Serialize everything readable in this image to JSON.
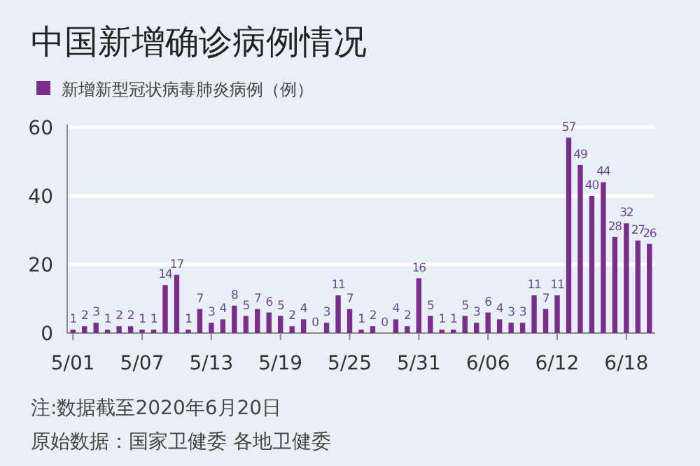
{
  "chart_data": {
    "type": "bar",
    "title": "中国新增确诊病例情况",
    "categories": [
      "5/01",
      null,
      null,
      null,
      null,
      null,
      "5/07",
      null,
      null,
      null,
      null,
      null,
      "5/13",
      null,
      null,
      null,
      null,
      null,
      "5/19",
      null,
      null,
      null,
      null,
      null,
      "5/25",
      null,
      null,
      null,
      null,
      null,
      "5/31",
      null,
      null,
      null,
      null,
      null,
      "6/06",
      null,
      null,
      null,
      null,
      null,
      "6/12",
      null,
      null,
      null,
      null,
      null,
      "6/18",
      null,
      null
    ],
    "series": [
      {
        "name": "新增新型冠状病毒肺炎病例（例）",
        "color": "#7b2d8b",
        "values": [
          1,
          2,
          3,
          1,
          2,
          2,
          1,
          1,
          14,
          17,
          1,
          7,
          3,
          4,
          8,
          5,
          7,
          6,
          5,
          2,
          4,
          0,
          3,
          11,
          7,
          1,
          2,
          0,
          4,
          2,
          16,
          5,
          1,
          1,
          5,
          3,
          6,
          4,
          3,
          3,
          11,
          7,
          11,
          57,
          49,
          40,
          44,
          28,
          32,
          27,
          26
        ]
      }
    ],
    "ylim": [
      0,
      60
    ],
    "yticks": [
      0,
      20,
      40,
      60
    ],
    "grid": "y",
    "legend": "top left",
    "data_labels": true,
    "annotations": [
      "注:数据截至2020年6月20日",
      "原始数据：国家卫健委 各地卫健委"
    ]
  }
}
